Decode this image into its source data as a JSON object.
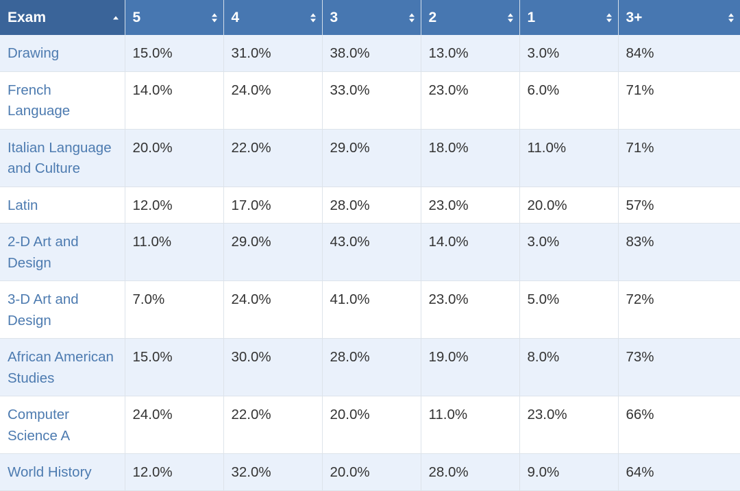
{
  "table": {
    "columns": [
      "Exam",
      "5",
      "4",
      "3",
      "2",
      "1",
      "3+"
    ],
    "sorted_column": "Exam",
    "rows": [
      {
        "exam": "Drawing",
        "values": [
          "15.0%",
          "31.0%",
          "38.0%",
          "13.0%",
          "3.0%",
          "84%"
        ]
      },
      {
        "exam": "French Language",
        "values": [
          "14.0%",
          "24.0%",
          "33.0%",
          "23.0%",
          "6.0%",
          "71%"
        ]
      },
      {
        "exam": "Italian Language and Culture",
        "values": [
          "20.0%",
          "22.0%",
          "29.0%",
          "18.0%",
          "11.0%",
          "71%"
        ]
      },
      {
        "exam": "Latin",
        "values": [
          "12.0%",
          "17.0%",
          "28.0%",
          "23.0%",
          "20.0%",
          "57%"
        ]
      },
      {
        "exam": "2-D Art and Design",
        "values": [
          "11.0%",
          "29.0%",
          "43.0%",
          "14.0%",
          "3.0%",
          "83%"
        ]
      },
      {
        "exam": "3-D Art and Design",
        "values": [
          "7.0%",
          "24.0%",
          "41.0%",
          "23.0%",
          "5.0%",
          "72%"
        ]
      },
      {
        "exam": "African American Studies",
        "values": [
          "15.0%",
          "30.0%",
          "28.0%",
          "19.0%",
          "8.0%",
          "73%"
        ]
      },
      {
        "exam": "Computer Science A",
        "values": [
          "24.0%",
          "22.0%",
          "20.0%",
          "11.0%",
          "23.0%",
          "66%"
        ]
      },
      {
        "exam": "World History",
        "values": [
          "12.0%",
          "32.0%",
          "20.0%",
          "28.0%",
          "9.0%",
          "64%"
        ]
      }
    ]
  },
  "colors": {
    "header_bg": "#4777b1",
    "header_sorted_bg": "#3a6499",
    "row_alt_bg": "#eaf1fb",
    "exam_text": "#4d7bb0"
  },
  "icons": {
    "sort_asc": "sort-ascending-icon",
    "sort_both": "sort-icon"
  }
}
